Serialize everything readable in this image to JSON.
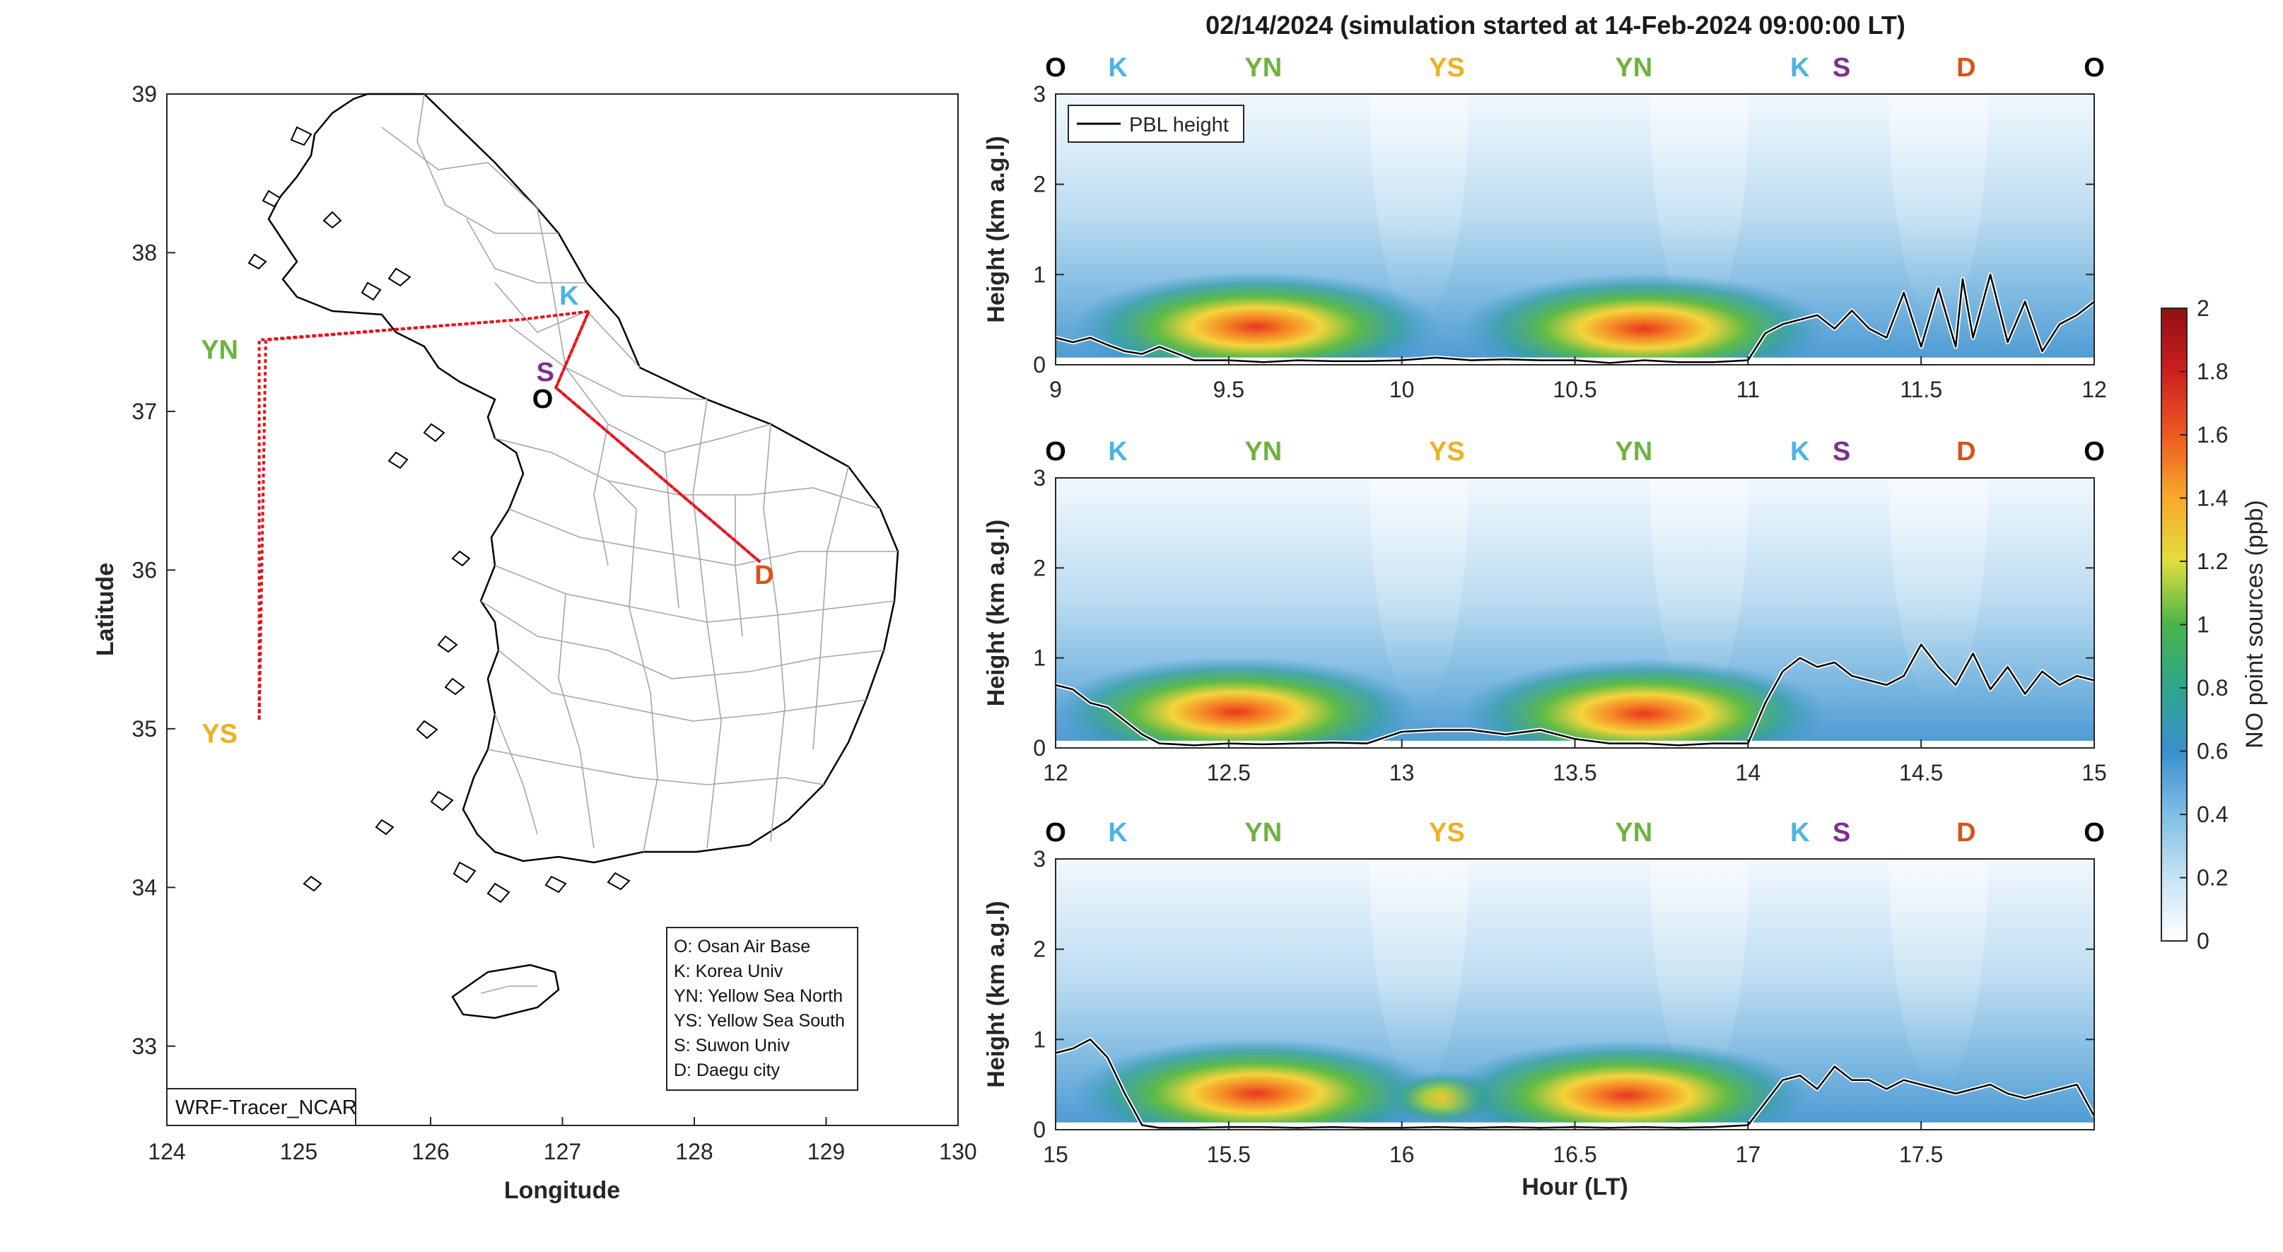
{
  "title": "02/14/2024 (simulation started at 14-Feb-2024 09:00:00 LT)",
  "colors": {
    "O": "#000000",
    "K": "#4db3e6",
    "YN": "#6db33f",
    "YS": "#edb120",
    "S": "#7e2f8e",
    "D": "#d95319",
    "route": "#e8121b",
    "pbl": "#000000"
  },
  "map": {
    "xlabel": "Longitude",
    "ylabel": "Latitude",
    "xlim": [
      124,
      130
    ],
    "ylim": [
      32.5,
      39
    ],
    "xticks": [
      "124",
      "125",
      "126",
      "127",
      "128",
      "129",
      "130"
    ],
    "yticks": [
      "33",
      "34",
      "35",
      "36",
      "37",
      "38",
      "39"
    ],
    "watermark": "WRF-Tracer_NCAR",
    "legend_lines": [
      "O: Osan Air Base",
      "K: Korea Univ",
      "YN: Yellow Sea North",
      "YS: Yellow Sea South",
      "S: Suwon Univ",
      "D: Daegu city"
    ],
    "sites": [
      {
        "label": "O",
        "lon": 126.85,
        "lat": 37.08,
        "key": "O"
      },
      {
        "label": "K",
        "lon": 127.05,
        "lat": 37.73,
        "key": "K"
      },
      {
        "label": "YN",
        "lon": 124.4,
        "lat": 37.39,
        "key": "YN"
      },
      {
        "label": "YS",
        "lon": 124.4,
        "lat": 34.97,
        "key": "YS"
      },
      {
        "label": "S",
        "lon": 126.87,
        "lat": 37.25,
        "key": "S"
      },
      {
        "label": "D",
        "lon": 128.53,
        "lat": 35.97,
        "key": "D"
      }
    ],
    "route": [
      [
        127.2,
        37.63
      ],
      [
        126.7,
        37.58
      ],
      [
        124.75,
        37.45
      ],
      [
        124.7,
        35.05
      ],
      [
        124.7,
        37.45
      ],
      [
        126.7,
        37.58
      ],
      [
        127.2,
        37.63
      ],
      [
        126.95,
        37.15
      ],
      [
        128.5,
        36.05
      ],
      [
        126.95,
        37.15
      ],
      [
        127.2,
        37.63
      ]
    ]
  },
  "chart_data": [
    {
      "type": "heatmap",
      "title": "",
      "xlabel": "",
      "ylabel": "Height (km a.g.l)",
      "xlim": [
        9,
        12
      ],
      "ylim": [
        0,
        3
      ],
      "xticks": [
        "9",
        "9.5",
        "10",
        "10.5",
        "11",
        "11.5",
        "12"
      ],
      "yticks": [
        "0",
        "1",
        "2",
        "3"
      ],
      "legend": "PBL height",
      "site_labels": [
        {
          "label": "O",
          "x": 9.0
        },
        {
          "label": "K",
          "x": 9.18
        },
        {
          "label": "YN",
          "x": 9.6
        },
        {
          "label": "YS",
          "x": 10.13
        },
        {
          "label": "YN",
          "x": 10.67
        },
        {
          "label": "K",
          "x": 11.15
        },
        {
          "label": "S",
          "x": 11.27
        },
        {
          "label": "D",
          "x": 11.63
        },
        {
          "label": "O",
          "x": 12.0
        }
      ],
      "hotspots": [
        {
          "x": 9.58,
          "y": 0.42,
          "value": 1.65
        },
        {
          "x": 10.7,
          "y": 0.4,
          "value": 1.6
        }
      ],
      "pbl_height": {
        "x": [
          9.0,
          9.05,
          9.1,
          9.15,
          9.2,
          9.25,
          9.3,
          9.4,
          9.5,
          9.6,
          9.7,
          9.8,
          9.9,
          10.0,
          10.1,
          10.2,
          10.3,
          10.4,
          10.5,
          10.6,
          10.7,
          10.8,
          10.9,
          11.0,
          11.05,
          11.1,
          11.15,
          11.2,
          11.25,
          11.3,
          11.35,
          11.4,
          11.45,
          11.5,
          11.55,
          11.6,
          11.62,
          11.65,
          11.7,
          11.75,
          11.8,
          11.85,
          11.9,
          11.95,
          12.0
        ],
        "y": [
          0.3,
          0.25,
          0.3,
          0.22,
          0.15,
          0.12,
          0.2,
          0.05,
          0.05,
          0.03,
          0.05,
          0.04,
          0.04,
          0.05,
          0.08,
          0.05,
          0.06,
          0.05,
          0.05,
          0.02,
          0.05,
          0.03,
          0.03,
          0.05,
          0.35,
          0.45,
          0.5,
          0.55,
          0.4,
          0.6,
          0.4,
          0.3,
          0.8,
          0.2,
          0.85,
          0.2,
          0.95,
          0.3,
          1.0,
          0.25,
          0.7,
          0.15,
          0.45,
          0.55,
          0.7
        ]
      }
    },
    {
      "type": "heatmap",
      "title": "",
      "xlabel": "",
      "ylabel": "Height (km a.g.l)",
      "xlim": [
        12,
        15
      ],
      "ylim": [
        0,
        3
      ],
      "xticks": [
        "12",
        "12.5",
        "13",
        "13.5",
        "14",
        "14.5",
        "15"
      ],
      "yticks": [
        "0",
        "1",
        "2",
        "3"
      ],
      "site_labels": [
        {
          "label": "O",
          "x": 12.0
        },
        {
          "label": "K",
          "x": 12.18
        },
        {
          "label": "YN",
          "x": 12.6
        },
        {
          "label": "YS",
          "x": 13.13
        },
        {
          "label": "YN",
          "x": 13.67
        },
        {
          "label": "K",
          "x": 14.15
        },
        {
          "label": "S",
          "x": 14.27
        },
        {
          "label": "D",
          "x": 14.63
        },
        {
          "label": "O",
          "x": 15.0
        }
      ],
      "hotspots": [
        {
          "x": 12.52,
          "y": 0.4,
          "value": 1.6
        },
        {
          "x": 13.7,
          "y": 0.38,
          "value": 1.55
        }
      ],
      "pbl_height": {
        "x": [
          12.0,
          12.05,
          12.1,
          12.15,
          12.2,
          12.25,
          12.3,
          12.4,
          12.5,
          12.6,
          12.7,
          12.8,
          12.9,
          13.0,
          13.1,
          13.2,
          13.3,
          13.4,
          13.5,
          13.6,
          13.7,
          13.8,
          13.9,
          14.0,
          14.05,
          14.1,
          14.15,
          14.2,
          14.25,
          14.3,
          14.35,
          14.4,
          14.45,
          14.5,
          14.55,
          14.6,
          14.65,
          14.7,
          14.75,
          14.8,
          14.85,
          14.9,
          14.95,
          15.0
        ],
        "y": [
          0.7,
          0.65,
          0.5,
          0.45,
          0.3,
          0.15,
          0.05,
          0.03,
          0.05,
          0.04,
          0.05,
          0.06,
          0.05,
          0.18,
          0.2,
          0.2,
          0.15,
          0.2,
          0.1,
          0.05,
          0.05,
          0.03,
          0.05,
          0.05,
          0.5,
          0.85,
          1.0,
          0.9,
          0.95,
          0.8,
          0.75,
          0.7,
          0.8,
          1.15,
          0.9,
          0.7,
          1.05,
          0.65,
          0.9,
          0.6,
          0.85,
          0.7,
          0.8,
          0.75
        ]
      }
    },
    {
      "type": "heatmap",
      "title": "",
      "xlabel": "Hour (LT)",
      "ylabel": "Height (km a.g.l)",
      "xlim": [
        15,
        18
      ],
      "ylim": [
        0,
        3
      ],
      "xticks": [
        "15",
        "15.5",
        "16",
        "16.5",
        "17",
        "17.5"
      ],
      "yticks": [
        "0",
        "1",
        "2",
        "3"
      ],
      "site_labels": [
        {
          "label": "O",
          "x": 15.0
        },
        {
          "label": "K",
          "x": 15.18
        },
        {
          "label": "YN",
          "x": 15.6
        },
        {
          "label": "YS",
          "x": 16.13
        },
        {
          "label": "YN",
          "x": 16.67
        },
        {
          "label": "K",
          "x": 17.15
        },
        {
          "label": "S",
          "x": 17.27
        },
        {
          "label": "D",
          "x": 17.63
        },
        {
          "label": "O",
          "x": 18.0
        }
      ],
      "hotspots": [
        {
          "x": 15.58,
          "y": 0.4,
          "value": 1.55
        },
        {
          "x": 16.12,
          "y": 0.35,
          "value": 1.2
        },
        {
          "x": 16.65,
          "y": 0.38,
          "value": 1.55
        }
      ],
      "pbl_height": {
        "x": [
          15.0,
          15.05,
          15.1,
          15.15,
          15.2,
          15.25,
          15.3,
          15.4,
          15.5,
          15.6,
          15.7,
          15.8,
          15.9,
          16.0,
          16.1,
          16.2,
          16.3,
          16.4,
          16.5,
          16.6,
          16.7,
          16.8,
          16.9,
          17.0,
          17.05,
          17.1,
          17.15,
          17.2,
          17.25,
          17.3,
          17.35,
          17.4,
          17.45,
          17.5,
          17.55,
          17.6,
          17.65,
          17.7,
          17.75,
          17.8,
          17.85,
          17.9,
          17.95,
          18.0
        ],
        "y": [
          0.85,
          0.9,
          1.0,
          0.8,
          0.4,
          0.05,
          0.02,
          0.02,
          0.03,
          0.03,
          0.02,
          0.03,
          0.02,
          0.02,
          0.03,
          0.02,
          0.03,
          0.02,
          0.03,
          0.02,
          0.03,
          0.02,
          0.03,
          0.05,
          0.3,
          0.55,
          0.6,
          0.45,
          0.7,
          0.55,
          0.55,
          0.45,
          0.55,
          0.5,
          0.45,
          0.4,
          0.45,
          0.5,
          0.4,
          0.35,
          0.4,
          0.45,
          0.5,
          0.15
        ]
      }
    }
  ],
  "colorbar": {
    "label": "NO point sources (ppb)",
    "ticks": [
      "0",
      "0.2",
      "0.4",
      "0.6",
      "0.8",
      "1",
      "1.2",
      "1.4",
      "1.6",
      "1.8",
      "2"
    ],
    "range": [
      0,
      2
    ]
  }
}
